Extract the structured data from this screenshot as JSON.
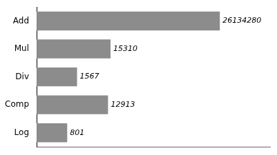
{
  "chart_data": {
    "type": "bar",
    "orientation": "horizontal",
    "categories": [
      "Log",
      "Comp",
      "Div",
      "Mul",
      "Add"
    ],
    "values": [
      801,
      12913,
      1567,
      15310,
      26134280
    ],
    "color": "#8c8c8c",
    "log": "x",
    "xlim": [
      100,
      800000000
    ],
    "grid": false,
    "data_labels": true,
    "tick_labels": "y"
  }
}
